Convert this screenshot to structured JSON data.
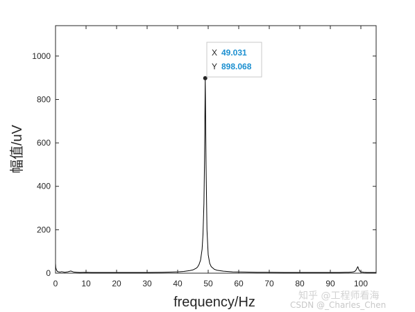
{
  "chart_data": {
    "type": "line",
    "xlabel": "frequency/Hz",
    "ylabel": "幅值/uV",
    "xlim": [
      0,
      105
    ],
    "ylim": [
      0,
      1140
    ],
    "xticks": [
      0,
      10,
      20,
      30,
      40,
      50,
      60,
      70,
      80,
      90,
      100
    ],
    "yticks": [
      0,
      200,
      400,
      600,
      800,
      1000
    ],
    "grid": false,
    "series": [
      {
        "color": "#000000",
        "x": [
          0,
          0.1,
          0.3,
          0.6,
          1,
          1.5,
          2,
          3,
          4,
          5,
          6,
          7,
          8,
          10,
          12,
          15,
          20,
          25,
          30,
          35,
          38,
          40,
          42,
          44,
          45,
          46,
          46.5,
          47,
          47.5,
          48,
          48.3,
          48.6,
          48.8,
          49.031,
          49.3,
          49.6,
          50,
          50.5,
          51,
          52,
          53,
          55,
          58,
          62,
          66,
          70,
          75,
          80,
          85,
          90,
          93,
          95,
          96,
          97,
          97.5,
          98,
          98.4,
          98.7,
          99,
          99.3,
          99.6,
          100,
          101,
          102,
          104,
          105
        ],
        "y": [
          45,
          25,
          15,
          8,
          6,
          5,
          7,
          4,
          6,
          10,
          5,
          4,
          3,
          4,
          3,
          3,
          3,
          3,
          3,
          4,
          5,
          6,
          8,
          12,
          15,
          22,
          28,
          40,
          60,
          110,
          180,
          320,
          520,
          898.068,
          500,
          200,
          85,
          45,
          30,
          18,
          13,
          9,
          6,
          5,
          4,
          4,
          3,
          3,
          3,
          3,
          3,
          4,
          4,
          5,
          6,
          8,
          14,
          22,
          30,
          18,
          10,
          6,
          4,
          3,
          3,
          3
        ]
      }
    ],
    "datatip": {
      "x_prefix": "X",
      "x_value": "49.031",
      "y_prefix": "Y",
      "y_value": "898.068",
      "x": 49.031,
      "y": 898.068,
      "value_color": "#1b8fd0"
    }
  },
  "watermark": {
    "zh_text": "知乎 @工程师看海",
    "csdn_text": "CSDN @_Charles_Chen"
  }
}
